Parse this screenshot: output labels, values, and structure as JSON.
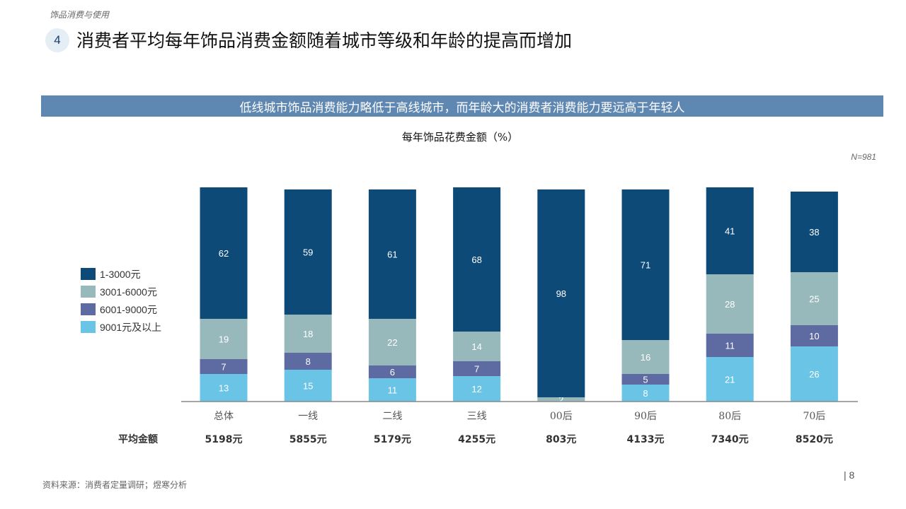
{
  "header": {
    "section_label": "饰品消费与使用",
    "number": "4",
    "title": "消费者平均每年饰品消费金额随着城市等级和年龄的提高而增加"
  },
  "banner": {
    "text": "低线城市饰品消费能力略低于高线城市，而年龄大的消费者消费能力要远高于年轻人"
  },
  "footer": {
    "source": "资料来源：消费者定量调研；煜寒分析",
    "page_number": "| 8"
  },
  "colors": {
    "s1": "#0e4a78",
    "s2": "#98b9bc",
    "s3": "#5e6ba3",
    "s4": "#6ac4e6",
    "banner": "#5e87b1"
  },
  "chart_data": {
    "type": "bar",
    "stacked": true,
    "title": "每年饰品花费金额（%）",
    "note": "N=981",
    "categories": [
      "总体",
      "一线",
      "二线",
      "三线",
      "00后",
      "90后",
      "80后",
      "70后"
    ],
    "series": [
      {
        "name": "9001元及以上",
        "values": [
          13,
          15,
          11,
          12,
          0,
          8,
          21,
          26
        ]
      },
      {
        "name": "6001-9000元",
        "values": [
          7,
          8,
          6,
          7,
          0,
          5,
          11,
          10
        ]
      },
      {
        "name": "3001-6000元",
        "values": [
          19,
          18,
          22,
          14,
          2,
          16,
          28,
          25
        ]
      },
      {
        "name": "1-3000元",
        "values": [
          62,
          59,
          61,
          68,
          98,
          71,
          41,
          38
        ]
      }
    ],
    "ylim": [
      0,
      100
    ],
    "avg_label": "平均金额",
    "averages": [
      "5198元",
      "5855元",
      "5179元",
      "4255元",
      "803元",
      "4133元",
      "7340元",
      "8520元"
    ],
    "legend_order": [
      "1-3000元",
      "3001-6000元",
      "6001-9000元",
      "9001元及以上"
    ],
    "legend_position": "left"
  }
}
